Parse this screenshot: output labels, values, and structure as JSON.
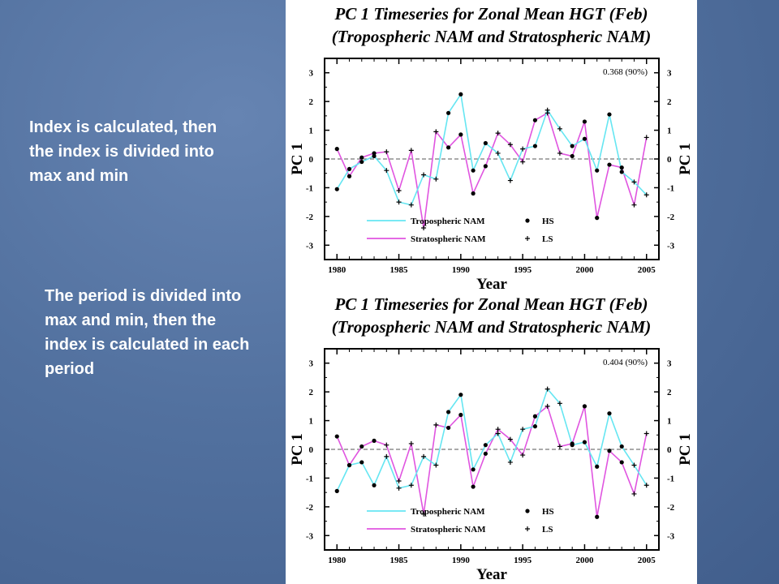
{
  "notes": {
    "left_top": "Index  is calculated, then the index is divided into max and min",
    "left_bottom": "The period is divided into max and min, then the index is calculated in each period"
  },
  "chart_data": [
    {
      "type": "line",
      "title": "PC 1 Timeseries for Zonal Mean HGT (Feb)",
      "subtitle": "(Tropospheric NAM and Stratospheric NAM)",
      "xlabel": "Year",
      "ylabel": "PC 1",
      "ylabel_right": "PC 1",
      "xlim": [
        1979,
        2006
      ],
      "ylim": [
        -3.5,
        3.5
      ],
      "xticks": [
        "1980",
        "1985",
        "1990",
        "1995",
        "2000",
        "2005"
      ],
      "yticks": [
        "3",
        "2",
        "1",
        "0",
        "-1",
        "-2",
        "-3"
      ],
      "annotation": "0.368 (90%)",
      "legend_position": "bottom-left",
      "legend_markers": [
        "HS",
        "LS"
      ],
      "x": [
        1980,
        1981,
        1982,
        1983,
        1984,
        1985,
        1986,
        1987,
        1988,
        1989,
        1990,
        1991,
        1992,
        1993,
        1994,
        1995,
        1996,
        1997,
        1998,
        1999,
        2000,
        2001,
        2002,
        2003,
        2004,
        2005
      ],
      "series": [
        {
          "name": "Tropospheric NAM",
          "color": "#66e6f2",
          "values": [
            -1.05,
            -0.35,
            -0.1,
            0.1,
            -0.4,
            -1.5,
            -1.6,
            -0.55,
            -0.7,
            1.6,
            2.25,
            -0.4,
            0.55,
            0.2,
            -0.75,
            0.35,
            0.45,
            1.7,
            1.05,
            0.45,
            0.7,
            -0.4,
            1.55,
            -0.45,
            -0.8,
            -1.25
          ]
        },
        {
          "name": "Stratospheric NAM",
          "color": "#e055e0",
          "values": [
            0.35,
            -0.6,
            0.05,
            0.2,
            0.25,
            -1.1,
            0.3,
            -2.4,
            0.95,
            0.4,
            0.85,
            -1.2,
            -0.25,
            0.9,
            0.5,
            -0.1,
            1.35,
            1.6,
            0.2,
            0.1,
            1.3,
            -2.05,
            -0.2,
            -0.3,
            -1.6,
            0.75
          ]
        }
      ],
      "hs_years": [
        1980,
        1981,
        1982,
        1983,
        1989,
        1990,
        1991,
        1992,
        1996,
        1999,
        2000,
        2001,
        2002,
        2003
      ],
      "ls_years": [
        1984,
        1985,
        1986,
        1987,
        1988,
        1993,
        1994,
        1995,
        1997,
        1998,
        2004,
        2005
      ]
    },
    {
      "type": "line",
      "title": "PC 1 Timeseries for Zonal Mean HGT (Feb)",
      "subtitle": "(Tropospheric NAM and Stratospheric NAM)",
      "xlabel": "Year",
      "ylabel": "PC 1",
      "ylabel_right": "PC 1",
      "xlim": [
        1979,
        2006
      ],
      "ylim": [
        -3.5,
        3.5
      ],
      "xticks": [
        "1980",
        "1985",
        "1990",
        "1995",
        "2000",
        "2005"
      ],
      "yticks": [
        "3",
        "2",
        "1",
        "0",
        "-1",
        "-2",
        "-3"
      ],
      "annotation": "0.404 (90%)",
      "legend_position": "bottom-left",
      "legend_markers": [
        "HS",
        "LS"
      ],
      "x": [
        1980,
        1981,
        1982,
        1983,
        1984,
        1985,
        1986,
        1987,
        1988,
        1989,
        1990,
        1991,
        1992,
        1993,
        1994,
        1995,
        1996,
        1997,
        1998,
        1999,
        2000,
        2001,
        2002,
        2003,
        2004,
        2005
      ],
      "series": [
        {
          "name": "Tropospheric NAM",
          "color": "#66e6f2",
          "values": [
            -1.45,
            -0.55,
            -0.45,
            -1.25,
            -0.25,
            -1.35,
            -1.25,
            -0.25,
            -0.55,
            1.3,
            1.9,
            -0.7,
            0.15,
            0.55,
            -0.45,
            0.7,
            0.8,
            2.1,
            1.6,
            0.15,
            0.25,
            -0.6,
            1.25,
            0.1,
            -0.55,
            -1.25
          ]
        },
        {
          "name": "Stratospheric NAM",
          "color": "#e055e0",
          "values": [
            0.45,
            -0.55,
            0.1,
            0.3,
            0.15,
            -1.1,
            0.2,
            -2.25,
            0.85,
            0.75,
            1.2,
            -1.3,
            -0.15,
            0.7,
            0.35,
            -0.2,
            1.15,
            1.5,
            0.1,
            0.2,
            1.5,
            -2.35,
            -0.05,
            -0.45,
            -1.55,
            0.55
          ]
        }
      ],
      "hs_years": [
        1980,
        1981,
        1982,
        1983,
        1989,
        1990,
        1991,
        1992,
        1996,
        1999,
        2000,
        2001,
        2002,
        2003
      ],
      "ls_years": [
        1984,
        1985,
        1986,
        1987,
        1988,
        1993,
        1994,
        1995,
        1997,
        1998,
        2004,
        2005
      ]
    }
  ]
}
